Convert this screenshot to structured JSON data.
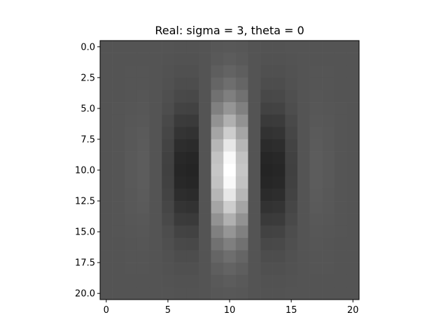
{
  "chart_data": {
    "type": "heatmap",
    "title": "Real: sigma = 3, theta = 0",
    "colormap": "gray",
    "rows": 21,
    "cols": 21,
    "sigma": 3,
    "theta": 0,
    "x_extent": [
      -0.5,
      20.5
    ],
    "y_extent": [
      20.5,
      -0.5
    ],
    "x_ticks": [
      0,
      5,
      10,
      15,
      20
    ],
    "x_tick_labels": [
      "0",
      "5",
      "10",
      "15",
      "20"
    ],
    "y_ticks": [
      0,
      2.5,
      5,
      7.5,
      10,
      12.5,
      15,
      17.5,
      20
    ],
    "y_tick_labels": [
      "0.0",
      "2.5",
      "5.0",
      "7.5",
      "10.0",
      "12.5",
      "15.0",
      "17.5",
      "20.0"
    ],
    "background_level": 0.33,
    "value_min": 0.0,
    "value_max": 1.0,
    "pattern": {
      "center_col": 10,
      "center_row": 10,
      "x_sigma": 3,
      "y_sigma": 3.6,
      "wavelength": 8,
      "peak_level": 1.0,
      "trough_level": 0.0
    }
  }
}
